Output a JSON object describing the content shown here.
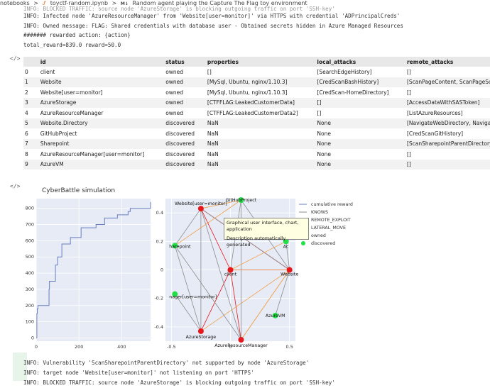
{
  "breadcrumb": {
    "root": "notebooks",
    "sep1": ">",
    "file": "toyctf-random.ipynb",
    "sep2": ">",
    "md": "M↓",
    "section": "Random agent playing the Capture The Flag toy environment"
  },
  "output1": {
    "line0": "INFO: BLOCKED TRAFFIC: source node 'AzureStorage' is blocking outgoing traffic on port 'SSH-key'",
    "line1": "INFO: Infected node 'AzureResourceManager' from 'Website[user=monitor]' via HTTPS with credential 'ADPrincipalCreds'",
    "line2": "INFO: Owned message: FLAG: Shared credentials with database user - Obtained secrets hidden in Azure Managed Resources",
    "line3": "####### rewarded action: {action}",
    "line4": "total_reward=839.0 reward=50.0"
  },
  "gutter_icon": "</>",
  "table": {
    "headers": [
      "",
      "id",
      "status",
      "properties",
      "local_attacks",
      "remote_attacks"
    ],
    "rows": [
      [
        "0",
        "client",
        "owned",
        "[]",
        "[SearchEdgeHistory]",
        "[]"
      ],
      [
        "1",
        "Website",
        "owned",
        "[MySql, Ubuntu, nginx/1.10.3]",
        "[CredScanBashHistory]",
        "[ScanPageContent, ScanPageSource]"
      ],
      [
        "2",
        "Website[user=monitor]",
        "owned",
        "[MySql, Ubuntu, nginx/1.10.3]",
        "[CredScan-HomeDirectory]",
        "[]"
      ],
      [
        "3",
        "AzureStorage",
        "owned",
        "[CTFFLAG:LeakedCustomerData]",
        "[]",
        "[AccessDataWithSASToken]"
      ],
      [
        "4",
        "AzureResourceManager",
        "owned",
        "[CTFFLAG:LeakedCustomerData2]",
        "[]",
        "[ListAzureResources]"
      ],
      [
        "5",
        "Website.Directory",
        "discovered",
        "NaN",
        "None",
        "[NavigateWebDirectory, NavigateWebDirectoryFurther]"
      ],
      [
        "6",
        "GitHubProject",
        "discovered",
        "NaN",
        "None",
        "[CredScanGitHistory]"
      ],
      [
        "7",
        "Sharepoint",
        "discovered",
        "NaN",
        "None",
        "[ScanSharepointParentDirectory]"
      ],
      [
        "8",
        "AzureResourceManager[user=monitor]",
        "discovered",
        "NaN",
        "None",
        "[]"
      ],
      [
        "9",
        "AzureVM",
        "discovered",
        "NaN",
        "None",
        "[]"
      ]
    ]
  },
  "chart_data": [
    {
      "type": "line",
      "title": "CyberBattle simulation",
      "series": [
        {
          "name": "cumulative reward"
        }
      ],
      "x": [
        0,
        3,
        5,
        8,
        11,
        14,
        17,
        20,
        60,
        62,
        90,
        100,
        120,
        160,
        210,
        280,
        320,
        380,
        430,
        440,
        480,
        520,
        535
      ],
      "y": [
        0,
        150,
        180,
        200,
        200,
        200,
        200,
        200,
        300,
        350,
        450,
        500,
        580,
        620,
        680,
        700,
        740,
        760,
        780,
        800,
        800,
        800,
        839
      ],
      "xlim": [
        0,
        535
      ],
      "ylim": [
        -20,
        860
      ],
      "xticks": [
        "0",
        "200",
        "400"
      ],
      "yticks": [
        "0",
        "100",
        "200",
        "300",
        "400",
        "500",
        "600",
        "700",
        "800"
      ],
      "grid": true
    },
    {
      "type": "scatter",
      "xticks": [
        "-0.5",
        "0",
        "0.5"
      ],
      "yticks": [
        "-0.4",
        "-0.2",
        "0",
        "0.2",
        "0.4"
      ],
      "xlim": [
        -0.55,
        0.55
      ],
      "ylim": [
        -0.5,
        0.5
      ],
      "nodes": [
        {
          "id": "client",
          "x": 0.0,
          "y": 0.0,
          "status": "owned"
        },
        {
          "id": "Website",
          "x": 0.5,
          "y": 0.0,
          "status": "owned"
        },
        {
          "id": "Website[user=monitor]",
          "x": -0.25,
          "y": 0.43,
          "status": "owned"
        },
        {
          "id": "AzureStorage",
          "x": -0.25,
          "y": -0.43,
          "status": "owned"
        },
        {
          "id": "AzureResourceManager",
          "x": 0.09,
          "y": -0.49,
          "status": "owned"
        },
        {
          "id": "GitHubProject",
          "x": 0.09,
          "y": 0.49,
          "status": "discovered"
        },
        {
          "id": "Sharepoint",
          "x": -0.47,
          "y": 0.17,
          "status": "discovered"
        },
        {
          "id": "AzureResourceManager[user=monitor]",
          "x": -0.47,
          "y": -0.17,
          "status": "discovered"
        },
        {
          "id": "AzureVM",
          "x": 0.38,
          "y": -0.32,
          "status": "discovered"
        },
        {
          "id": "Website.Directory",
          "x": 0.47,
          "y": 0.2,
          "status": "discovered"
        }
      ],
      "edge_labels": {
        "knows": "KNOWS",
        "remote_exploit": "REMOTE_EXPLOIT",
        "lateral_move": "LATERAL_MOVE"
      },
      "node_labels_visible": {
        "client": "client",
        "Website": "Website",
        "Website[user=monitor]": "Website[user=monitor]",
        "AzureStorage": "AzureStorage",
        "AzureResourceManager": "AzureResourceManager",
        "GitHubProject": "GitHubProject",
        "Sharepoint": "harepoint",
        "AzureResourceManager[user=monitor]": "nager[user=monitor]",
        "AzureVM": "AzureVM",
        "Website.Directory": "Ac"
      },
      "legend": [
        "cumulative reward",
        "KNOWS",
        "REMOTE_EXPLOIT",
        "LATERAL_MOVE",
        "owned",
        "discovered"
      ]
    }
  ],
  "tooltip": {
    "line1": "Graphical user interface, chart, application",
    "line2": "Description automatically generated"
  },
  "output2": {
    "line0": "INFO: Vulnerability 'ScanSharepointParentDirectory' not supported by node 'AzureStorage'",
    "line1": "INFO: target node 'Website[user=monitor]' not listening on port 'HTTPS'",
    "line2": "INFO: BLOCKED TRAFFIC: source node 'AzureStorage' is blocking outgoing traffic on port 'SSH-key'"
  },
  "colors": {
    "owned": "#e8171b",
    "discovered": "#21e046",
    "knows": "#8b8b8b",
    "remote_exploit": "#f2a14c",
    "lateral_move": "#e8171b",
    "line": "#6a7ec0",
    "plot_bg": "#e6ebf5"
  }
}
